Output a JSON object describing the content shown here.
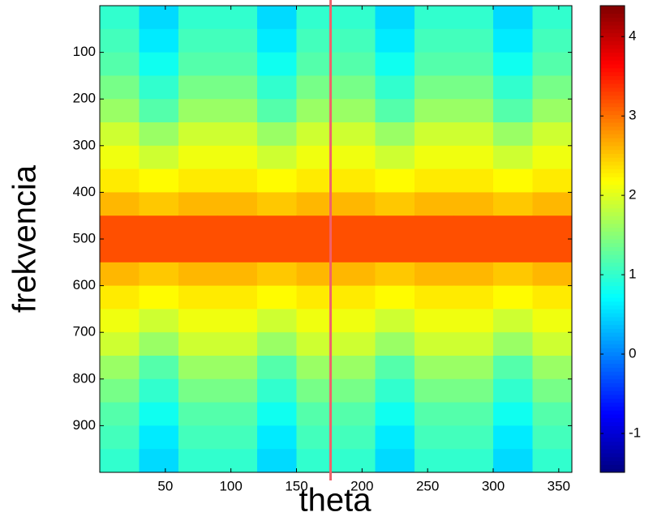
{
  "chart_data": {
    "type": "heatmap",
    "x_label": "theta",
    "y_label": "frekvencia",
    "x": [
      15,
      45,
      75,
      105,
      135,
      165,
      195,
      225,
      255,
      285,
      315,
      345
    ],
    "y": [
      25,
      75,
      125,
      175,
      225,
      275,
      325,
      375,
      425,
      475,
      525,
      575,
      625,
      675,
      725,
      775,
      825,
      875,
      925,
      975
    ],
    "z": [
      [
        1.0,
        0.5,
        1.0,
        1.0,
        0.5,
        1.0,
        1.0,
        0.5,
        1.0,
        1.0,
        0.5,
        1.0
      ],
      [
        1.1,
        0.6,
        1.1,
        1.1,
        0.6,
        1.1,
        1.1,
        0.6,
        1.1,
        1.1,
        0.6,
        1.1
      ],
      [
        1.2,
        0.8,
        1.2,
        1.2,
        0.8,
        1.2,
        1.2,
        0.8,
        1.2,
        1.2,
        0.8,
        1.2
      ],
      [
        1.4,
        1.0,
        1.4,
        1.4,
        1.0,
        1.4,
        1.4,
        1.0,
        1.4,
        1.4,
        1.0,
        1.4
      ],
      [
        1.6,
        1.2,
        1.6,
        1.6,
        1.2,
        1.6,
        1.6,
        1.2,
        1.6,
        1.6,
        1.2,
        1.6
      ],
      [
        1.9,
        1.6,
        1.9,
        1.9,
        1.6,
        1.9,
        1.9,
        1.6,
        1.9,
        1.9,
        1.6,
        1.9
      ],
      [
        2.1,
        1.9,
        2.1,
        2.1,
        1.9,
        2.1,
        2.1,
        1.9,
        2.1,
        2.1,
        1.9,
        2.1
      ],
      [
        2.3,
        2.2,
        2.3,
        2.3,
        2.2,
        2.3,
        2.3,
        2.2,
        2.3,
        2.3,
        2.2,
        2.3
      ],
      [
        2.6,
        2.5,
        2.6,
        2.6,
        2.5,
        2.6,
        2.6,
        2.5,
        2.6,
        2.6,
        2.5,
        2.6
      ],
      [
        3.2,
        3.2,
        3.2,
        3.2,
        3.2,
        3.2,
        3.2,
        3.2,
        3.2,
        3.2,
        3.2,
        3.2
      ],
      [
        3.2,
        3.2,
        3.2,
        3.2,
        3.2,
        3.2,
        3.2,
        3.2,
        3.2,
        3.2,
        3.2,
        3.2
      ],
      [
        2.6,
        2.5,
        2.6,
        2.6,
        2.5,
        2.6,
        2.6,
        2.5,
        2.6,
        2.6,
        2.5,
        2.6
      ],
      [
        2.3,
        2.2,
        2.3,
        2.3,
        2.2,
        2.3,
        2.3,
        2.2,
        2.3,
        2.3,
        2.2,
        2.3
      ],
      [
        2.1,
        1.9,
        2.1,
        2.1,
        1.9,
        2.1,
        2.1,
        1.9,
        2.1,
        2.1,
        1.9,
        2.1
      ],
      [
        1.9,
        1.6,
        1.9,
        1.9,
        1.6,
        1.9,
        1.9,
        1.6,
        1.9,
        1.9,
        1.6,
        1.9
      ],
      [
        1.6,
        1.2,
        1.6,
        1.6,
        1.2,
        1.6,
        1.6,
        1.2,
        1.6,
        1.6,
        1.2,
        1.6
      ],
      [
        1.4,
        1.0,
        1.4,
        1.4,
        1.0,
        1.4,
        1.4,
        1.0,
        1.4,
        1.4,
        1.0,
        1.4
      ],
      [
        1.2,
        0.8,
        1.2,
        1.2,
        0.8,
        1.2,
        1.2,
        0.8,
        1.2,
        1.2,
        0.8,
        1.2
      ],
      [
        1.1,
        0.6,
        1.1,
        1.1,
        0.6,
        1.1,
        1.1,
        0.6,
        1.1,
        1.1,
        0.6,
        1.1
      ],
      [
        1.0,
        0.5,
        1.0,
        1.0,
        0.5,
        1.0,
        1.0,
        0.5,
        1.0,
        1.0,
        0.5,
        1.0
      ]
    ],
    "xlim": [
      0,
      360
    ],
    "ylim": [
      1000,
      0
    ],
    "xticks": [
      50,
      100,
      150,
      200,
      250,
      300,
      350
    ],
    "yticks": [
      100,
      200,
      300,
      400,
      500,
      600,
      700,
      800,
      900
    ],
    "clim": [
      -1.49,
      4.39
    ],
    "cticks": [
      -1,
      0,
      1,
      2,
      3,
      4
    ],
    "colormap": "jet",
    "vline": {
      "x": 176,
      "color": "#f0626a"
    }
  }
}
